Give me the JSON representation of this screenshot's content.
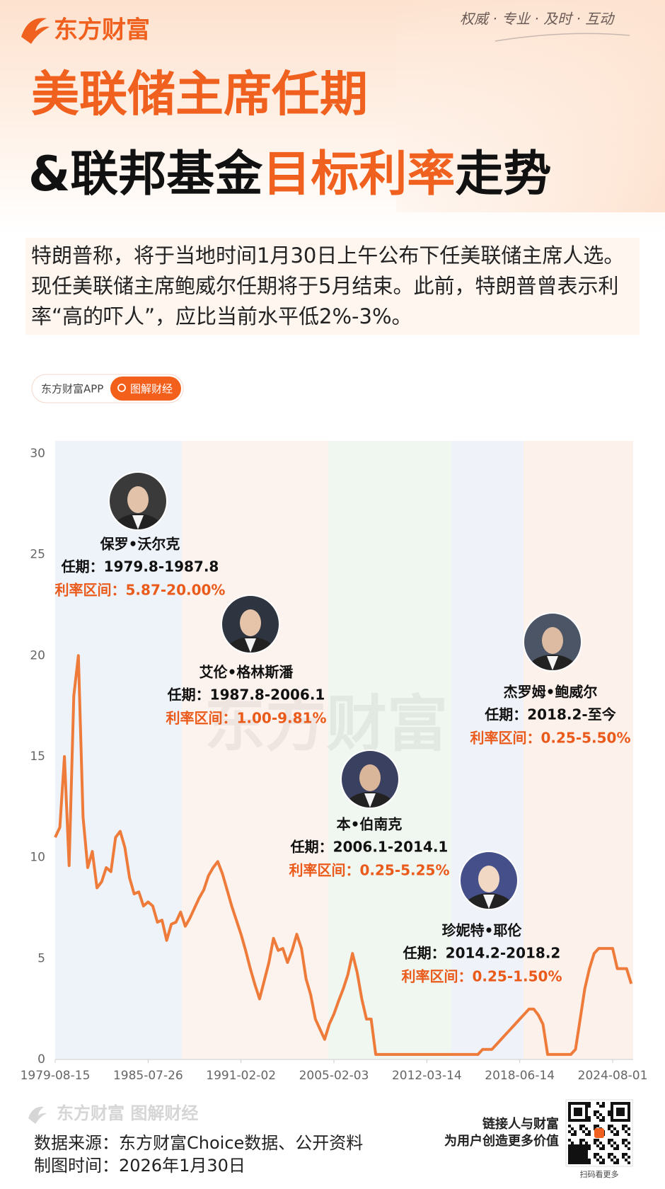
{
  "header": {
    "logo": "东方财富",
    "slogan": "权威 · 专业 · 及时 · 互动",
    "title_line1": "美联储主席任期",
    "title_line2": [
      "&联邦基金",
      "目标利率",
      "走势"
    ]
  },
  "intro": "特朗普称，将于当地时间1月30日上午公布下任美联储主席人选。现任美联储主席鲍威尔任期将于5月结束。此前，特朗普曾表示利率“高的吓人”，应比当前水平低2%-3%。",
  "tag": {
    "app": "东方财富APP",
    "label": "图解财经"
  },
  "chart_data": {
    "type": "line",
    "watermark": "东方财富",
    "categories": [
      "1979-08-15",
      null,
      null,
      null,
      null,
      null,
      null,
      null,
      null,
      null,
      null,
      null,
      null,
      null,
      null,
      null,
      null,
      null,
      null,
      null,
      "1985-07-26",
      null,
      null,
      null,
      null,
      null,
      null,
      null,
      null,
      null,
      null,
      null,
      null,
      null,
      null,
      null,
      null,
      null,
      null,
      null,
      "1991-02-02",
      null,
      null,
      null,
      null,
      null,
      null,
      null,
      null,
      null,
      null,
      null,
      null,
      null,
      null,
      null,
      null,
      null,
      null,
      null,
      "2005-02-03",
      null,
      null,
      null,
      null,
      null,
      null,
      null,
      null,
      null,
      null,
      null,
      null,
      null,
      null,
      null,
      null,
      null,
      null,
      null,
      "2012-03-14",
      null,
      null,
      null,
      null,
      null,
      null,
      null,
      null,
      null,
      null,
      null,
      null,
      null,
      null,
      null,
      null,
      null,
      null,
      null,
      "2018-06-14",
      null,
      null,
      null,
      null,
      null,
      null,
      null,
      null,
      null,
      null,
      null,
      null,
      null,
      null,
      null,
      null,
      null,
      null,
      null,
      "2024-08-01",
      null,
      null,
      null,
      null
    ],
    "values": [
      11,
      11.5,
      15,
      9.6,
      18,
      20,
      12,
      9.5,
      10.3,
      8.5,
      8.8,
      9.5,
      9.3,
      11,
      11.3,
      10.5,
      9,
      8.2,
      8.3,
      7.6,
      7.8,
      7.6,
      6.8,
      6.9,
      5.9,
      6.7,
      6.8,
      7.3,
      6.6,
      7,
      7.5,
      8,
      8.4,
      9.1,
      9.5,
      9.8,
      9.2,
      8.4,
      7.6,
      6.9,
      6.2,
      5.4,
      4.5,
      3.7,
      3,
      3.9,
      4.8,
      6,
      5.4,
      5.5,
      4.8,
      5.4,
      6.2,
      5.5,
      4,
      3.2,
      2,
      1.5,
      1,
      1.75,
      2.25,
      2.9,
      3.5,
      4.2,
      5.25,
      4.3,
      3,
      2,
      2,
      0.25,
      0.25,
      0.25,
      0.25,
      0.25,
      0.25,
      0.25,
      0.25,
      0.25,
      0.25,
      0.25,
      0.25,
      0.25,
      0.25,
      0.25,
      0.25,
      0.25,
      0.25,
      0.25,
      0.25,
      0.25,
      0.25,
      0.25,
      0.5,
      0.5,
      0.5,
      0.75,
      1,
      1.25,
      1.5,
      1.75,
      2,
      2.25,
      2.5,
      2.5,
      2.2,
      1.75,
      0.25,
      0.25,
      0.25,
      0.25,
      0.25,
      0.25,
      0.5,
      2,
      3.5,
      4.5,
      5.25,
      5.5,
      5.5,
      5.5,
      5.5,
      4.5,
      4.5,
      4.5,
      3.75
    ],
    "color": "#ee7b3a",
    "ylim": [
      0,
      30
    ],
    "yticks": [
      0,
      5,
      10,
      15,
      20,
      25,
      30
    ],
    "grid": false,
    "annotations": [
      {
        "name": "保罗•沃尔克",
        "term": "任期：1979.8-1987.8",
        "range": "利率区间：5.87-20.00%"
      },
      {
        "name": "艾伦•格林斯潘",
        "term": "任期：1987.8-2006.1",
        "range": "利率区间：1.00-9.81%"
      },
      {
        "name": "本•伯南克",
        "term": "任期：2006.1-2014.1",
        "range": "利率区间：0.25-5.25%"
      },
      {
        "name": "珍妮特•耶伦",
        "term": "任期：2014.2-2018.2",
        "range": "利率区间：0.25-1.50%"
      },
      {
        "name": "杰罗姆•鲍威尔",
        "term": "任期：2018.2-至今",
        "range": "利率区间：0.25-5.50%"
      }
    ]
  },
  "footer": {
    "brand": "东方财富 图解财经",
    "source": "数据来源：东方财富Choice数据、公开资料",
    "date": "制图时间：2026年1月30日",
    "slogan1": "链接人与财富",
    "slogan2": "为用户创造更多价值",
    "qr_caption": "扫码看更多"
  }
}
